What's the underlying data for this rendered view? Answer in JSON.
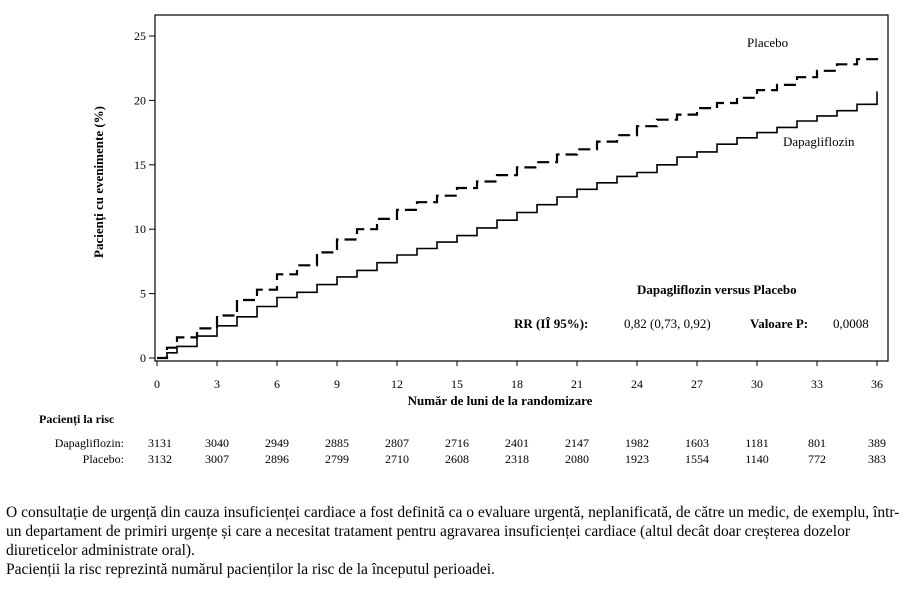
{
  "chart_data": {
    "type": "line",
    "xlabel": "Număr de luni de la randomizare",
    "ylabel": "Pacienți cu evenimente (%)",
    "xlim": [
      0,
      36
    ],
    "ylim": [
      0,
      25
    ],
    "x_ticks": [
      0,
      3,
      6,
      9,
      12,
      15,
      18,
      21,
      24,
      27,
      30,
      33,
      36
    ],
    "y_ticks": [
      0,
      5,
      10,
      15,
      20,
      25
    ],
    "grid": false,
    "series": [
      {
        "name": "Placebo",
        "style": "dashed",
        "x": [
          0,
          0.5,
          1,
          2,
          3,
          4,
          5,
          6,
          7,
          8,
          9,
          10,
          11,
          12,
          13,
          14,
          15,
          16,
          17,
          18,
          19,
          20,
          21,
          22,
          23,
          24,
          25,
          26,
          27,
          28,
          29,
          30,
          31,
          32,
          33,
          34,
          35,
          36
        ],
        "y": [
          0,
          0.8,
          1.6,
          2.3,
          3.3,
          4.5,
          5.3,
          6.5,
          7.2,
          8.2,
          9.2,
          10.0,
          10.8,
          11.5,
          12.1,
          12.6,
          13.2,
          13.7,
          14.2,
          14.8,
          15.2,
          15.8,
          16.2,
          16.8,
          17.3,
          18.0,
          18.5,
          18.9,
          19.4,
          19.8,
          20.2,
          20.8,
          21.2,
          21.8,
          22.3,
          22.8,
          23.2,
          23.6
        ]
      },
      {
        "name": "Dapagliflozin",
        "style": "solid",
        "x": [
          0,
          0.5,
          1,
          2,
          3,
          4,
          5,
          6,
          7,
          8,
          9,
          10,
          11,
          12,
          13,
          14,
          15,
          16,
          17,
          18,
          19,
          20,
          21,
          22,
          23,
          24,
          25,
          26,
          27,
          28,
          29,
          30,
          31,
          32,
          33,
          34,
          35,
          36
        ],
        "y": [
          0,
          0.4,
          0.9,
          1.7,
          2.5,
          3.2,
          4.0,
          4.7,
          5.1,
          5.7,
          6.3,
          6.8,
          7.4,
          8.0,
          8.5,
          9.0,
          9.5,
          10.1,
          10.7,
          11.3,
          11.9,
          12.5,
          13.1,
          13.6,
          14.1,
          14.4,
          15.0,
          15.6,
          16.0,
          16.6,
          17.1,
          17.5,
          17.9,
          18.4,
          18.8,
          19.2,
          19.7,
          20.7
        ]
      }
    ]
  },
  "series_labels": {
    "placebo": "Placebo",
    "dapagliflozin": "Dapagliflozin"
  },
  "stats_box": {
    "title": "Dapagliflozin versus Placebo",
    "rr_label": "RR (IÎ 95%):",
    "rr_value": "0,82 (0,73, 0,92)",
    "p_label": "Valoare P:",
    "p_value": "0,0008"
  },
  "risk_table": {
    "title": "Pacienți la risc",
    "rows": [
      {
        "label": "Dapagliflozin:",
        "values": [
          "3131",
          "3040",
          "2949",
          "2885",
          "2807",
          "2716",
          "2401",
          "2147",
          "1982",
          "1603",
          "1181",
          "801",
          "389"
        ]
      },
      {
        "label": "Placebo:",
        "values": [
          "3132",
          "3007",
          "2896",
          "2799",
          "2710",
          "2608",
          "2318",
          "2080",
          "1923",
          "1554",
          "1140",
          "772",
          "383"
        ]
      }
    ]
  },
  "caption": {
    "paragraph1": "O consultație de urgență din cauza insuficienței cardiace a fost definită ca o evaluare urgentă, neplanificată, de către un medic, de exemplu, într-un departament de primiri urgențe și care a necesitat tratament pentru agravarea insuficienței cardiace (altul decât doar creșterea dozelor diureticelor administrate oral).",
    "paragraph2": "Pacienții la risc reprezintă numărul pacienților la risc de la începutul perioadei."
  }
}
